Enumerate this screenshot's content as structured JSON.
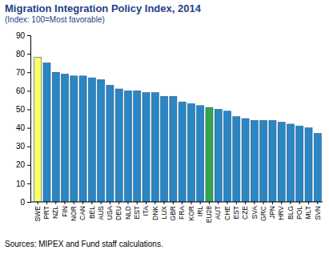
{
  "chart_data": {
    "type": "bar",
    "title": "Migration Integration Policy Index, 2014",
    "subtitle": "(Index: 100=Most favorable)",
    "source": "Sources: MIPEX and Fund staff calculations.",
    "categories": [
      "SWE",
      "PRT",
      "NZL",
      "FIN",
      "NOR",
      "CAN",
      "BEL",
      "AUS",
      "USA",
      "DEU",
      "NLD",
      "EST",
      "ITA",
      "DNK",
      "LUX",
      "GBR",
      "FRA",
      "KOR",
      "IRL",
      "EU28",
      "AUT",
      "CHE",
      "EST",
      "CZE",
      "SVA",
      "GRC",
      "JPN",
      "HRV",
      "BLG",
      "POL",
      "MLT",
      "SVN"
    ],
    "values": [
      78,
      75,
      70,
      69,
      68,
      68,
      67,
      66,
      63,
      61,
      60,
      60,
      59,
      59,
      57,
      57,
      54,
      53,
      52,
      51,
      50,
      49,
      46,
      45,
      44,
      44,
      44,
      43,
      42,
      41,
      40,
      37
    ],
    "colors": [
      "#ffff66",
      "#2b86c3",
      "#2b86c3",
      "#2b86c3",
      "#2b86c3",
      "#2b86c3",
      "#2b86c3",
      "#2b86c3",
      "#2b86c3",
      "#2b86c3",
      "#2b86c3",
      "#2b86c3",
      "#2b86c3",
      "#2b86c3",
      "#2b86c3",
      "#2b86c3",
      "#2b86c3",
      "#2b86c3",
      "#2b86c3",
      "#33a64a",
      "#2b86c3",
      "#2b86c3",
      "#2b86c3",
      "#2b86c3",
      "#2b86c3",
      "#2b86c3",
      "#2b86c3",
      "#2b86c3",
      "#2b86c3",
      "#2b86c3",
      "#2b86c3",
      "#2b86c3"
    ],
    "ylim": [
      0,
      90
    ],
    "yticks": [
      0,
      10,
      20,
      30,
      40,
      50,
      60,
      70,
      80,
      90
    ],
    "grid": false
  }
}
